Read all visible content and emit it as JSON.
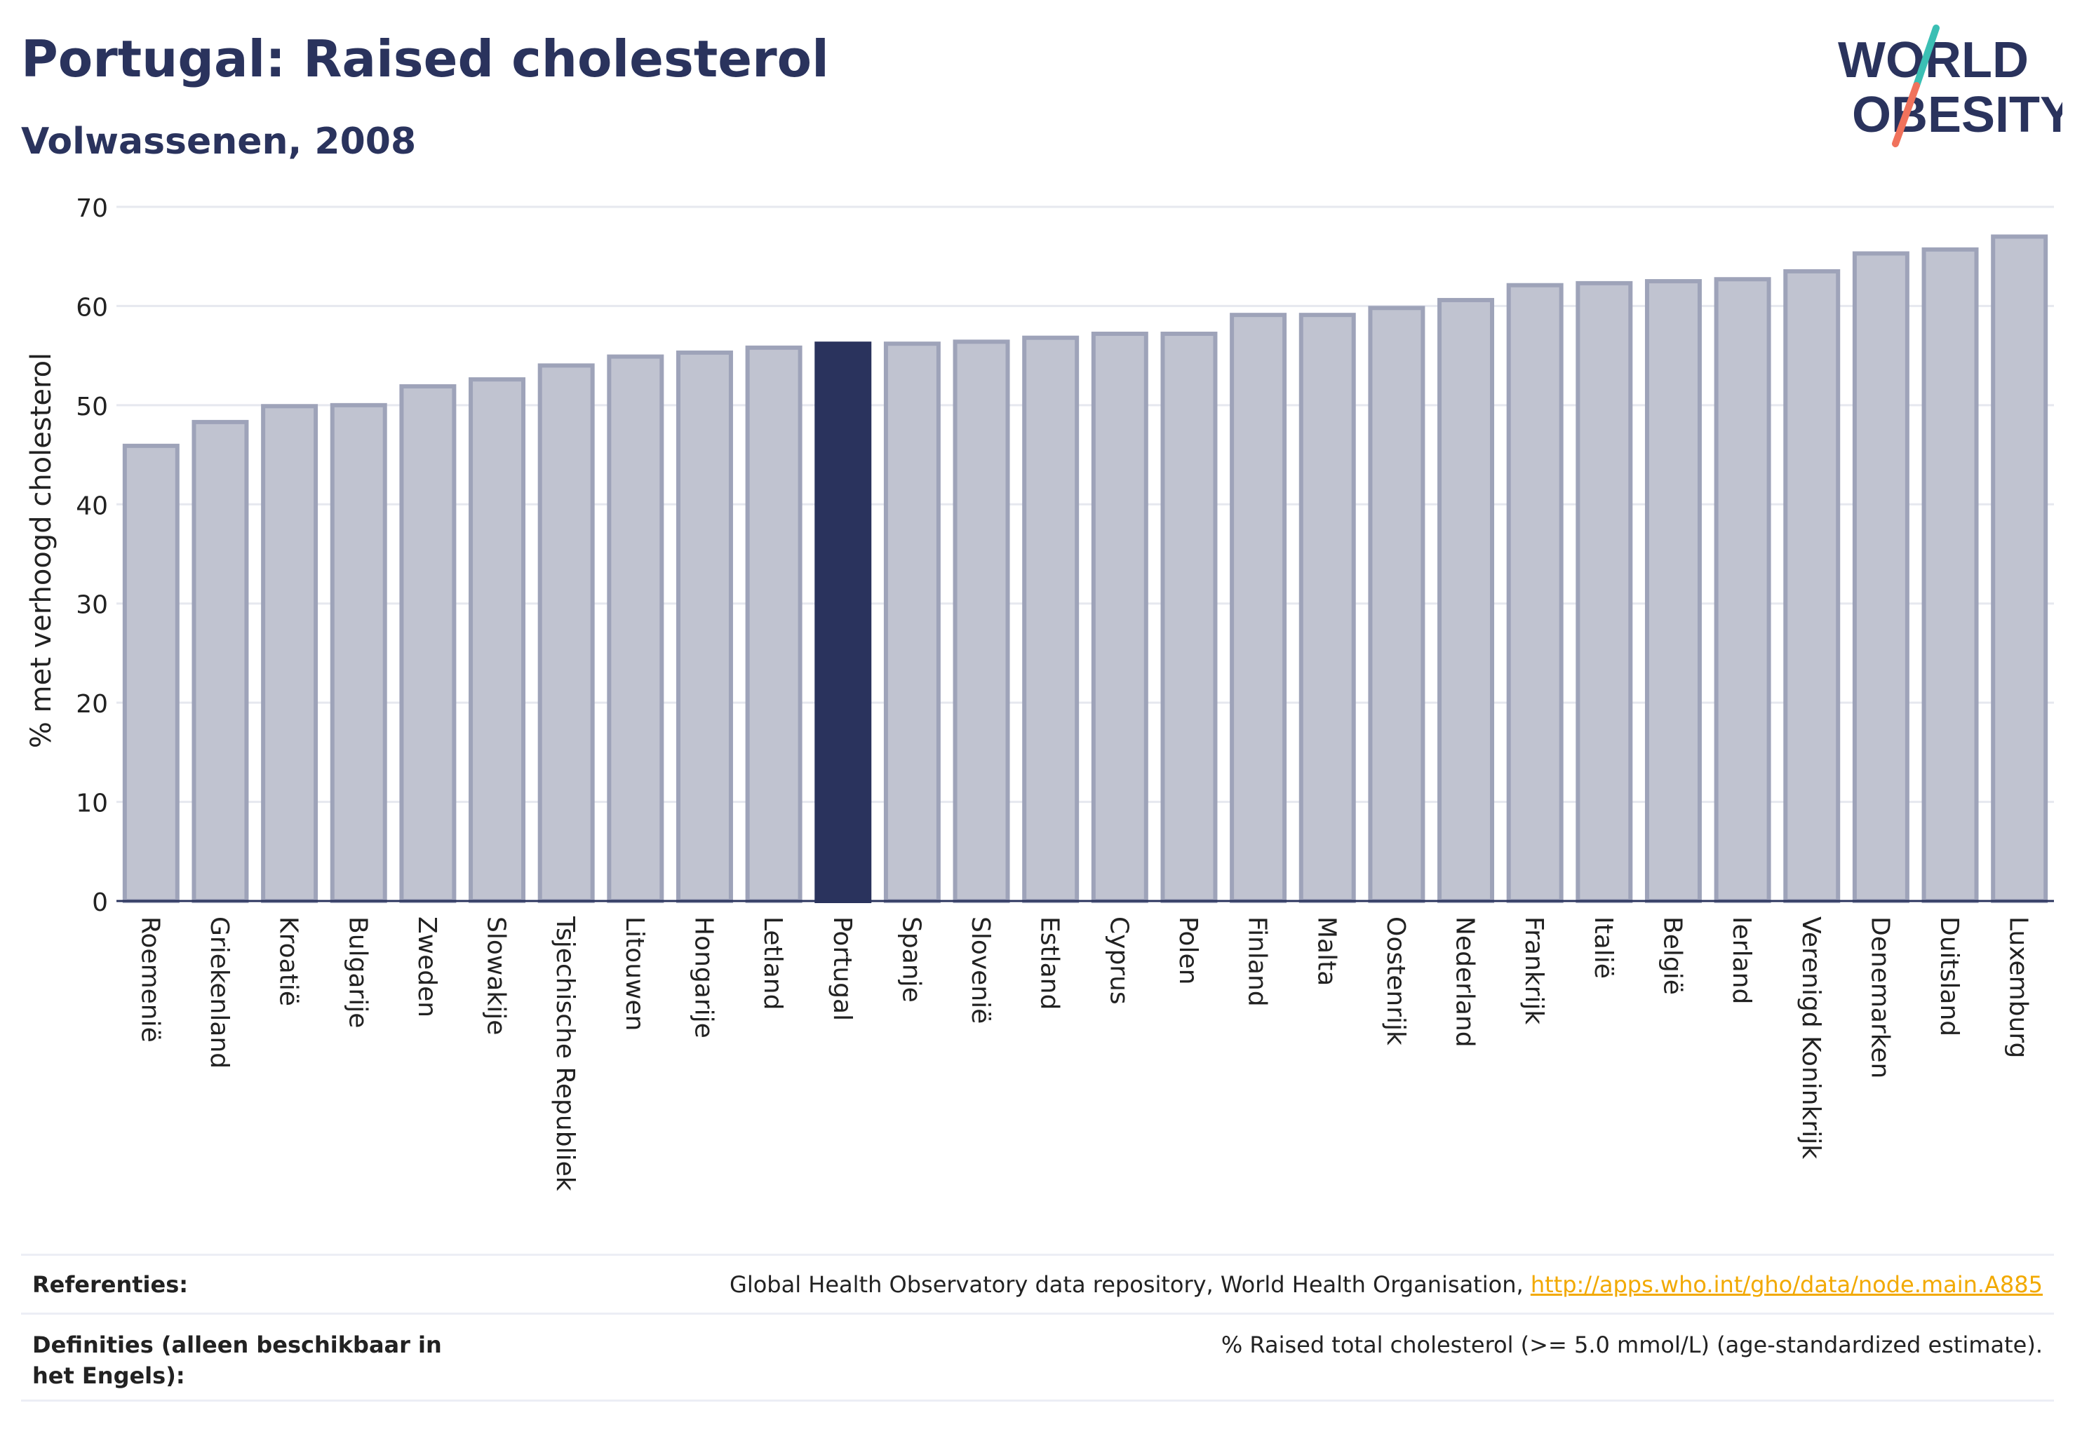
{
  "header": {
    "title": "Portugal: Raised cholesterol",
    "subtitle": "Volwassenen, 2008"
  },
  "logo": {
    "line1": "WORLD",
    "line2": "OBESITY",
    "colors": {
      "text": "#2a335d",
      "slash_teal": "#3bbfb4",
      "slash_coral": "#f0725c"
    }
  },
  "colors": {
    "highlight_bar": "#2a335d",
    "bar_fill": "#c0c3d0",
    "bar_stroke": "#9ea3b9",
    "gridline": "#e6e8ef",
    "link": "#f2a900"
  },
  "chart_data": {
    "type": "bar",
    "title": "Portugal: Raised cholesterol",
    "subtitle": "Volwassenen, 2008",
    "ylabel": "% met verhoogd cholesterol",
    "xlabel": "",
    "ylim": [
      0,
      70
    ],
    "yticks": [
      0,
      10,
      20,
      30,
      40,
      50,
      60,
      70
    ],
    "grid": true,
    "highlight": "Portugal",
    "categories": [
      "Roemenië",
      "Griekenland",
      "Kroatië",
      "Bulgarije",
      "Zweden",
      "Slowakije",
      "Tsjechische Republiek",
      "Litouwen",
      "Hongarije",
      "Letland",
      "Portugal",
      "Spanje",
      "Slovenië",
      "Estland",
      "Cyprus",
      "Polen",
      "Finland",
      "Malta",
      "Oostenrijk",
      "Nederland",
      "Frankrijk",
      "Italië",
      "België",
      "Ierland",
      "Verenigd Koninkrijk",
      "Denemarken",
      "Duitsland",
      "Luxemburg"
    ],
    "values": [
      45.9,
      48.3,
      49.9,
      50.0,
      51.9,
      52.6,
      54.0,
      54.9,
      55.3,
      55.8,
      56.2,
      56.2,
      56.4,
      56.8,
      57.2,
      57.2,
      59.1,
      59.1,
      59.8,
      60.6,
      62.1,
      62.3,
      62.5,
      62.7,
      63.5,
      65.3,
      65.7,
      67.0
    ]
  },
  "footer": {
    "references_label": "Referenties:",
    "references_text": "Global Health Observatory data repository, World Health Organisation, ",
    "references_link": "http://apps.who.int/gho/data/node.main.A885",
    "definitions_label": "Definities (alleen beschikbaar in het Engels):",
    "definitions_text": "% Raised total cholesterol (>= 5.0 mmol/L) (age-standardized estimate)."
  }
}
